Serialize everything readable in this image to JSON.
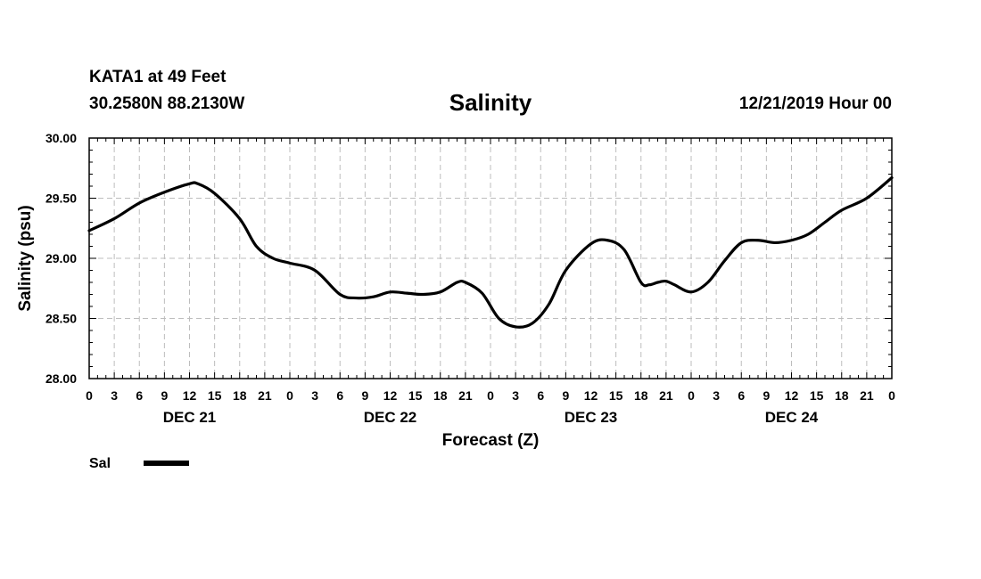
{
  "header": {
    "station": "KATA1 at 49 Feet",
    "coords": "30.2580N 88.2130W",
    "title": "Salinity",
    "runtime": "12/21/2019 Hour 00"
  },
  "chart_data": {
    "type": "line",
    "title": "Salinity",
    "xlabel": "Forecast (Z)",
    "ylabel": "Salinity (psu)",
    "ylim": [
      28.0,
      30.0
    ],
    "y_ticks": [
      "28.00",
      "28.50",
      "29.00",
      "29.50",
      "30.00"
    ],
    "x_range_hours": [
      0,
      96
    ],
    "x_tick_labels": [
      "0",
      "3",
      "6",
      "9",
      "12",
      "15",
      "18",
      "21",
      "0",
      "3",
      "6",
      "9",
      "12",
      "15",
      "18",
      "21",
      "0",
      "3",
      "6",
      "9",
      "12",
      "15",
      "18",
      "21",
      "0",
      "3",
      "6",
      "9",
      "12",
      "15",
      "18",
      "21",
      "0"
    ],
    "day_labels": [
      {
        "label": "DEC 21",
        "hour": 12
      },
      {
        "label": "DEC 22",
        "hour": 36
      },
      {
        "label": "DEC 23",
        "hour": 60
      },
      {
        "label": "DEC 24",
        "hour": 84
      }
    ],
    "grid": true,
    "legend_position": "bottom-left",
    "series": [
      {
        "name": "Sal",
        "color": "#000000",
        "x": [
          0,
          3,
          6,
          9,
          12,
          13,
          15,
          18,
          20,
          22,
          24,
          27,
          30,
          32,
          34,
          36,
          38,
          40,
          42,
          44,
          45,
          47,
          49,
          51,
          53,
          55,
          57,
          60,
          62,
          64,
          66,
          67,
          68,
          69,
          70,
          72,
          74,
          76,
          78,
          80,
          82,
          84,
          86,
          88,
          90,
          93,
          96
        ],
        "values": [
          29.23,
          29.33,
          29.46,
          29.55,
          29.62,
          29.62,
          29.54,
          29.33,
          29.1,
          29.0,
          28.96,
          28.9,
          28.7,
          28.67,
          28.68,
          28.72,
          28.71,
          28.7,
          28.72,
          28.8,
          28.8,
          28.71,
          28.5,
          28.43,
          28.46,
          28.62,
          28.9,
          29.12,
          29.15,
          29.07,
          28.8,
          28.78,
          28.8,
          28.81,
          28.78,
          28.72,
          28.8,
          28.98,
          29.13,
          29.15,
          29.13,
          29.15,
          29.2,
          29.3,
          29.4,
          29.5,
          29.67
        ]
      }
    ]
  }
}
